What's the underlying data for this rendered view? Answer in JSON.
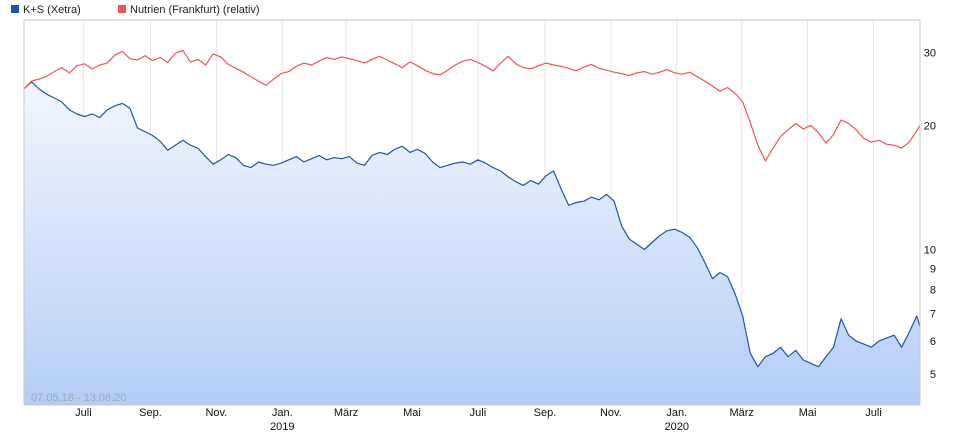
{
  "chart_data": {
    "type": "line",
    "scale": "log",
    "date_range_label": "07.05.18 - 13.08.20",
    "x_range": [
      "2018-05-07",
      "2020-08-13"
    ],
    "ylim": [
      4.2,
      36
    ],
    "y_ticks": [
      {
        "value": 30,
        "label": "30"
      },
      {
        "value": 20,
        "label": "20"
      },
      {
        "value": 10,
        "label": "10"
      },
      {
        "value": 9,
        "label": "9"
      },
      {
        "value": 8,
        "label": "8"
      },
      {
        "value": 7,
        "label": "7"
      },
      {
        "value": 6,
        "label": "6"
      },
      {
        "value": 5,
        "label": "5"
      }
    ],
    "x_ticks": [
      {
        "date": "2018-07-01",
        "label": "Juli",
        "sub": ""
      },
      {
        "date": "2018-09-01",
        "label": "Sep.",
        "sub": ""
      },
      {
        "date": "2018-11-01",
        "label": "Nov.",
        "sub": ""
      },
      {
        "date": "2019-01-01",
        "label": "Jan.",
        "sub": "2019"
      },
      {
        "date": "2019-03-01",
        "label": "März",
        "sub": ""
      },
      {
        "date": "2019-05-01",
        "label": "Mai",
        "sub": ""
      },
      {
        "date": "2019-07-01",
        "label": "Juli",
        "sub": ""
      },
      {
        "date": "2019-09-01",
        "label": "Sep.",
        "sub": ""
      },
      {
        "date": "2019-11-01",
        "label": "Nov.",
        "sub": ""
      },
      {
        "date": "2020-01-01",
        "label": "Jan.",
        "sub": "2020"
      },
      {
        "date": "2020-03-01",
        "label": "März",
        "sub": ""
      },
      {
        "date": "2020-05-01",
        "label": "Mai",
        "sub": ""
      },
      {
        "date": "2020-07-01",
        "label": "Juli",
        "sub": ""
      }
    ],
    "grid": "vertical",
    "legend": "top-left",
    "series": [
      {
        "name": "K+S (Xetra)",
        "color": "#2255aa",
        "fill": "gradient",
        "points": [
          [
            "2018-05-07",
            24.5
          ],
          [
            "2018-05-14",
            25.5
          ],
          [
            "2018-05-21",
            24.5
          ],
          [
            "2018-05-28",
            23.8
          ],
          [
            "2018-06-04",
            23.3
          ],
          [
            "2018-06-11",
            22.8
          ],
          [
            "2018-06-18",
            21.8
          ],
          [
            "2018-06-25",
            21.3
          ],
          [
            "2018-07-02",
            21.0
          ],
          [
            "2018-07-09",
            21.3
          ],
          [
            "2018-07-16",
            20.9
          ],
          [
            "2018-07-23",
            21.8
          ],
          [
            "2018-07-30",
            22.3
          ],
          [
            "2018-08-06",
            22.6
          ],
          [
            "2018-08-13",
            22.0
          ],
          [
            "2018-08-20",
            19.7
          ],
          [
            "2018-08-27",
            19.3
          ],
          [
            "2018-09-03",
            18.9
          ],
          [
            "2018-09-10",
            18.3
          ],
          [
            "2018-09-17",
            17.4
          ],
          [
            "2018-09-24",
            17.9
          ],
          [
            "2018-10-01",
            18.4
          ],
          [
            "2018-10-08",
            17.9
          ],
          [
            "2018-10-15",
            17.6
          ],
          [
            "2018-10-22",
            16.8
          ],
          [
            "2018-10-29",
            16.1
          ],
          [
            "2018-11-05",
            16.5
          ],
          [
            "2018-11-12",
            17.0
          ],
          [
            "2018-11-19",
            16.7
          ],
          [
            "2018-11-26",
            16.0
          ],
          [
            "2018-12-03",
            15.8
          ],
          [
            "2018-12-10",
            16.3
          ],
          [
            "2018-12-17",
            16.1
          ],
          [
            "2018-12-24",
            16.0
          ],
          [
            "2018-12-31",
            16.2
          ],
          [
            "2019-01-07",
            16.5
          ],
          [
            "2019-01-14",
            16.8
          ],
          [
            "2019-01-21",
            16.3
          ],
          [
            "2019-01-28",
            16.6
          ],
          [
            "2019-02-04",
            16.9
          ],
          [
            "2019-02-11",
            16.5
          ],
          [
            "2019-02-18",
            16.7
          ],
          [
            "2019-02-25",
            16.6
          ],
          [
            "2019-03-04",
            16.8
          ],
          [
            "2019-03-11",
            16.2
          ],
          [
            "2019-03-18",
            16.0
          ],
          [
            "2019-03-25",
            16.9
          ],
          [
            "2019-04-01",
            17.2
          ],
          [
            "2019-04-08",
            17.0
          ],
          [
            "2019-04-15",
            17.5
          ],
          [
            "2019-04-22",
            17.8
          ],
          [
            "2019-04-29",
            17.2
          ],
          [
            "2019-05-06",
            17.5
          ],
          [
            "2019-05-13",
            17.1
          ],
          [
            "2019-05-20",
            16.3
          ],
          [
            "2019-05-27",
            15.8
          ],
          [
            "2019-06-03",
            16.0
          ],
          [
            "2019-06-10",
            16.2
          ],
          [
            "2019-06-17",
            16.3
          ],
          [
            "2019-06-24",
            16.1
          ],
          [
            "2019-07-01",
            16.5
          ],
          [
            "2019-07-08",
            16.2
          ],
          [
            "2019-07-15",
            15.8
          ],
          [
            "2019-07-22",
            15.5
          ],
          [
            "2019-07-29",
            15.0
          ],
          [
            "2019-08-05",
            14.6
          ],
          [
            "2019-08-12",
            14.3
          ],
          [
            "2019-08-19",
            14.7
          ],
          [
            "2019-08-26",
            14.4
          ],
          [
            "2019-09-02",
            15.1
          ],
          [
            "2019-09-09",
            15.5
          ],
          [
            "2019-09-16",
            14.0
          ],
          [
            "2019-09-23",
            12.8
          ],
          [
            "2019-09-30",
            13.0
          ],
          [
            "2019-10-07",
            13.1
          ],
          [
            "2019-10-14",
            13.4
          ],
          [
            "2019-10-21",
            13.2
          ],
          [
            "2019-10-28",
            13.6
          ],
          [
            "2019-11-04",
            13.1
          ],
          [
            "2019-11-11",
            11.4
          ],
          [
            "2019-11-18",
            10.6
          ],
          [
            "2019-11-25",
            10.3
          ],
          [
            "2019-12-02",
            10.0
          ],
          [
            "2019-12-09",
            10.4
          ],
          [
            "2019-12-16",
            10.8
          ],
          [
            "2019-12-23",
            11.1
          ],
          [
            "2019-12-30",
            11.2
          ],
          [
            "2020-01-06",
            11.0
          ],
          [
            "2020-01-13",
            10.7
          ],
          [
            "2020-01-20",
            10.1
          ],
          [
            "2020-01-27",
            9.3
          ],
          [
            "2020-02-03",
            8.5
          ],
          [
            "2020-02-10",
            8.8
          ],
          [
            "2020-02-17",
            8.6
          ],
          [
            "2020-02-24",
            7.8
          ],
          [
            "2020-03-02",
            6.9
          ],
          [
            "2020-03-09",
            5.6
          ],
          [
            "2020-03-16",
            5.2
          ],
          [
            "2020-03-23",
            5.5
          ],
          [
            "2020-03-30",
            5.6
          ],
          [
            "2020-04-06",
            5.8
          ],
          [
            "2020-04-13",
            5.5
          ],
          [
            "2020-04-20",
            5.7
          ],
          [
            "2020-04-27",
            5.4
          ],
          [
            "2020-05-04",
            5.3
          ],
          [
            "2020-05-11",
            5.2
          ],
          [
            "2020-05-18",
            5.5
          ],
          [
            "2020-05-25",
            5.8
          ],
          [
            "2020-06-01",
            6.8
          ],
          [
            "2020-06-08",
            6.2
          ],
          [
            "2020-06-15",
            6.0
          ],
          [
            "2020-06-22",
            5.9
          ],
          [
            "2020-06-29",
            5.8
          ],
          [
            "2020-07-06",
            6.0
          ],
          [
            "2020-07-13",
            6.1
          ],
          [
            "2020-07-20",
            6.2
          ],
          [
            "2020-07-27",
            5.8
          ],
          [
            "2020-08-03",
            6.3
          ],
          [
            "2020-08-10",
            6.9
          ],
          [
            "2020-08-13",
            6.5
          ]
        ]
      },
      {
        "name": "Nutrien (Frankfurt) (relativ)",
        "color": "#ee5555",
        "fill": "none",
        "points": [
          [
            "2018-05-07",
            24.5
          ],
          [
            "2018-05-14",
            25.6
          ],
          [
            "2018-05-21",
            25.9
          ],
          [
            "2018-05-28",
            26.3
          ],
          [
            "2018-06-04",
            27.0
          ],
          [
            "2018-06-11",
            27.6
          ],
          [
            "2018-06-18",
            26.8
          ],
          [
            "2018-06-25",
            27.9
          ],
          [
            "2018-07-02",
            28.2
          ],
          [
            "2018-07-09",
            27.4
          ],
          [
            "2018-07-16",
            28.0
          ],
          [
            "2018-07-23",
            28.3
          ],
          [
            "2018-07-30",
            29.6
          ],
          [
            "2018-08-06",
            30.2
          ],
          [
            "2018-08-13",
            29.0
          ],
          [
            "2018-08-20",
            28.8
          ],
          [
            "2018-08-27",
            29.5
          ],
          [
            "2018-09-03",
            28.7
          ],
          [
            "2018-09-10",
            29.2
          ],
          [
            "2018-09-17",
            28.4
          ],
          [
            "2018-09-24",
            29.9
          ],
          [
            "2018-10-01",
            30.4
          ],
          [
            "2018-10-08",
            28.5
          ],
          [
            "2018-10-15",
            28.9
          ],
          [
            "2018-10-22",
            28.0
          ],
          [
            "2018-10-29",
            29.8
          ],
          [
            "2018-11-05",
            29.3
          ],
          [
            "2018-11-12",
            28.1
          ],
          [
            "2018-11-19",
            27.5
          ],
          [
            "2018-11-26",
            26.9
          ],
          [
            "2018-12-03",
            26.2
          ],
          [
            "2018-12-10",
            25.6
          ],
          [
            "2018-12-17",
            25.0
          ],
          [
            "2018-12-24",
            25.9
          ],
          [
            "2018-12-31",
            26.7
          ],
          [
            "2019-01-07",
            27.0
          ],
          [
            "2019-01-14",
            27.8
          ],
          [
            "2019-01-21",
            28.3
          ],
          [
            "2019-01-28",
            28.0
          ],
          [
            "2019-02-04",
            28.6
          ],
          [
            "2019-02-11",
            29.2
          ],
          [
            "2019-02-18",
            28.9
          ],
          [
            "2019-02-25",
            29.3
          ],
          [
            "2019-03-04",
            29.0
          ],
          [
            "2019-03-11",
            28.7
          ],
          [
            "2019-03-18",
            28.3
          ],
          [
            "2019-03-25",
            28.9
          ],
          [
            "2019-04-01",
            29.4
          ],
          [
            "2019-04-08",
            28.8
          ],
          [
            "2019-04-15",
            28.2
          ],
          [
            "2019-04-22",
            27.6
          ],
          [
            "2019-04-29",
            28.5
          ],
          [
            "2019-05-06",
            27.9
          ],
          [
            "2019-05-13",
            27.2
          ],
          [
            "2019-05-20",
            26.7
          ],
          [
            "2019-05-27",
            26.5
          ],
          [
            "2019-06-03",
            27.2
          ],
          [
            "2019-06-10",
            28.0
          ],
          [
            "2019-06-17",
            28.6
          ],
          [
            "2019-06-24",
            28.9
          ],
          [
            "2019-07-01",
            28.4
          ],
          [
            "2019-07-08",
            27.8
          ],
          [
            "2019-07-15",
            27.1
          ],
          [
            "2019-07-22",
            28.3
          ],
          [
            "2019-07-29",
            29.4
          ],
          [
            "2019-08-05",
            28.2
          ],
          [
            "2019-08-12",
            27.6
          ],
          [
            "2019-08-19",
            27.4
          ],
          [
            "2019-08-26",
            27.9
          ],
          [
            "2019-09-02",
            28.3
          ],
          [
            "2019-09-09",
            28.0
          ],
          [
            "2019-09-16",
            27.8
          ],
          [
            "2019-09-23",
            27.5
          ],
          [
            "2019-09-30",
            27.1
          ],
          [
            "2019-10-07",
            27.7
          ],
          [
            "2019-10-14",
            28.1
          ],
          [
            "2019-10-21",
            27.5
          ],
          [
            "2019-10-28",
            27.2
          ],
          [
            "2019-11-04",
            26.9
          ],
          [
            "2019-11-11",
            26.7
          ],
          [
            "2019-11-18",
            26.4
          ],
          [
            "2019-11-25",
            26.8
          ],
          [
            "2019-12-02",
            27.0
          ],
          [
            "2019-12-09",
            26.6
          ],
          [
            "2019-12-16",
            26.9
          ],
          [
            "2019-12-23",
            27.3
          ],
          [
            "2019-12-30",
            26.8
          ],
          [
            "2020-01-06",
            26.6
          ],
          [
            "2020-01-13",
            26.9
          ],
          [
            "2020-01-20",
            26.2
          ],
          [
            "2020-01-27",
            25.6
          ],
          [
            "2020-02-03",
            24.9
          ],
          [
            "2020-02-10",
            24.2
          ],
          [
            "2020-02-17",
            24.7
          ],
          [
            "2020-02-24",
            23.9
          ],
          [
            "2020-03-02",
            22.8
          ],
          [
            "2020-03-09",
            20.3
          ],
          [
            "2020-03-16",
            17.9
          ],
          [
            "2020-03-23",
            16.4
          ],
          [
            "2020-03-30",
            17.6
          ],
          [
            "2020-04-06",
            18.8
          ],
          [
            "2020-04-13",
            19.5
          ],
          [
            "2020-04-20",
            20.2
          ],
          [
            "2020-04-27",
            19.6
          ],
          [
            "2020-05-04",
            20.0
          ],
          [
            "2020-05-11",
            19.2
          ],
          [
            "2020-05-18",
            18.1
          ],
          [
            "2020-05-25",
            19.0
          ],
          [
            "2020-06-01",
            20.6
          ],
          [
            "2020-06-08",
            20.2
          ],
          [
            "2020-06-15",
            19.5
          ],
          [
            "2020-06-22",
            18.6
          ],
          [
            "2020-06-29",
            18.2
          ],
          [
            "2020-07-06",
            18.4
          ],
          [
            "2020-07-13",
            18.0
          ],
          [
            "2020-07-20",
            17.9
          ],
          [
            "2020-07-27",
            17.6
          ],
          [
            "2020-08-03",
            18.2
          ],
          [
            "2020-08-10",
            19.4
          ],
          [
            "2020-08-13",
            20.0
          ]
        ]
      }
    ]
  }
}
